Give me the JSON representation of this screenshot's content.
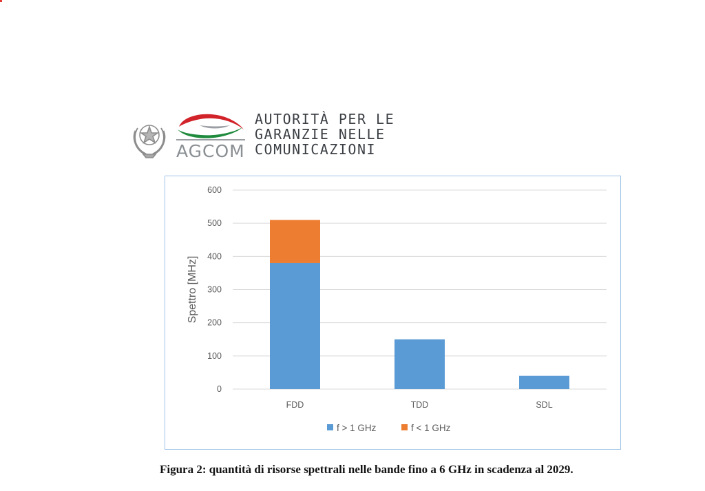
{
  "header": {
    "agcom_label": "AGCOM",
    "authority_lines": [
      "AUTORITÀ PER LE",
      "GARANZIE NELLE",
      "COMUNICAZIONI"
    ],
    "emblem_icon": "italian-republic-emblem-icon",
    "logo_icon": "agcom-swoosh-icon",
    "colors": {
      "green": "#1e8a3c",
      "red": "#d2232a",
      "gray": "#8a8f93"
    }
  },
  "chart_data": {
    "type": "bar",
    "stacked": true,
    "categories": [
      "FDD",
      "TDD",
      "SDL"
    ],
    "series": [
      {
        "name": "f > 1 GHz",
        "color": "#5b9bd5",
        "values": [
          380,
          150,
          40
        ]
      },
      {
        "name": "f < 1 GHz",
        "color": "#ed7d31",
        "values": [
          130,
          0,
          0
        ]
      }
    ],
    "title": "",
    "xlabel": "",
    "ylabel": "Spettro [MHz]",
    "ylim": [
      0,
      600
    ],
    "yticks": [
      0,
      100,
      200,
      300,
      400,
      500,
      600
    ],
    "grid": true,
    "legend_position": "bottom"
  },
  "caption": "Figura 2: quantità di risorse spettrali nelle bande fino a 6 GHz in scadenza al 2029."
}
